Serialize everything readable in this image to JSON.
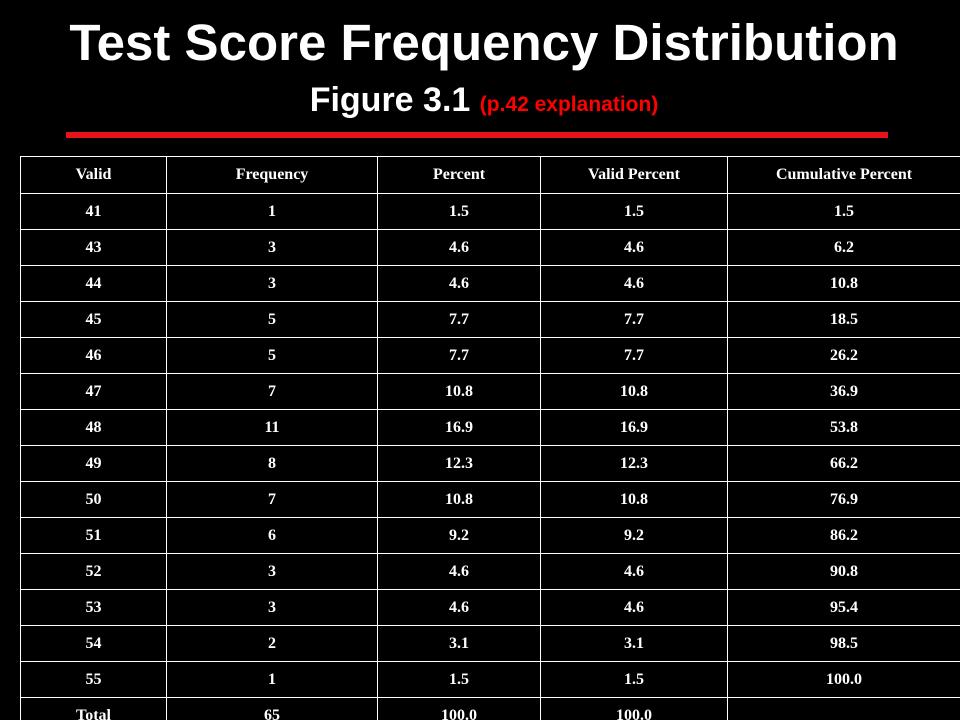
{
  "slide": {
    "title": "Test Score Frequency Distribution",
    "subtitle": "Figure 3.1",
    "subtitle_note": "(p.42 explanation)"
  },
  "colors": {
    "background": "#000000",
    "text": "#ffffff",
    "accent_red": "#ff0000",
    "divider": "#e8121a",
    "highlight_yellow": "#ffff00"
  },
  "table": {
    "headers": [
      "Valid",
      "Frequency",
      "Percent",
      "Valid Percent",
      "Cumulative Percent"
    ],
    "rows": [
      [
        "41",
        "1",
        "1.5",
        "1.5",
        "1.5"
      ],
      [
        "43",
        "3",
        "4.6",
        "4.6",
        "6.2"
      ],
      [
        "44",
        "3",
        "4.6",
        "4.6",
        "10.8"
      ],
      [
        "45",
        "5",
        "7.7",
        "7.7",
        "18.5"
      ],
      [
        "46",
        "5",
        "7.7",
        "7.7",
        "26.2"
      ],
      [
        "47",
        "7",
        "10.8",
        "10.8",
        "36.9"
      ],
      [
        "48",
        "11",
        "16.9",
        "16.9",
        "53.8"
      ],
      [
        "49",
        "8",
        "12.3",
        "12.3",
        "66.2"
      ],
      [
        "50",
        "7",
        "10.8",
        "10.8",
        "76.9"
      ],
      [
        "51",
        "6",
        "9.2",
        "9.2",
        "86.2"
      ],
      [
        "52",
        "3",
        "4.6",
        "4.6",
        "90.8"
      ],
      [
        "53",
        "3",
        "4.6",
        "4.6",
        "95.4"
      ],
      [
        "54",
        "2",
        "3.1",
        "3.1",
        "98.5"
      ],
      [
        "55",
        "1",
        "1.5",
        "1.5",
        "100.0"
      ]
    ],
    "highlighted_row": {
      "value": "46",
      "valid_color": "#ff0000",
      "cumulative_color": "#ffff00"
    },
    "total": [
      "Total",
      "65",
      "100.0",
      "100.0",
      ""
    ]
  }
}
